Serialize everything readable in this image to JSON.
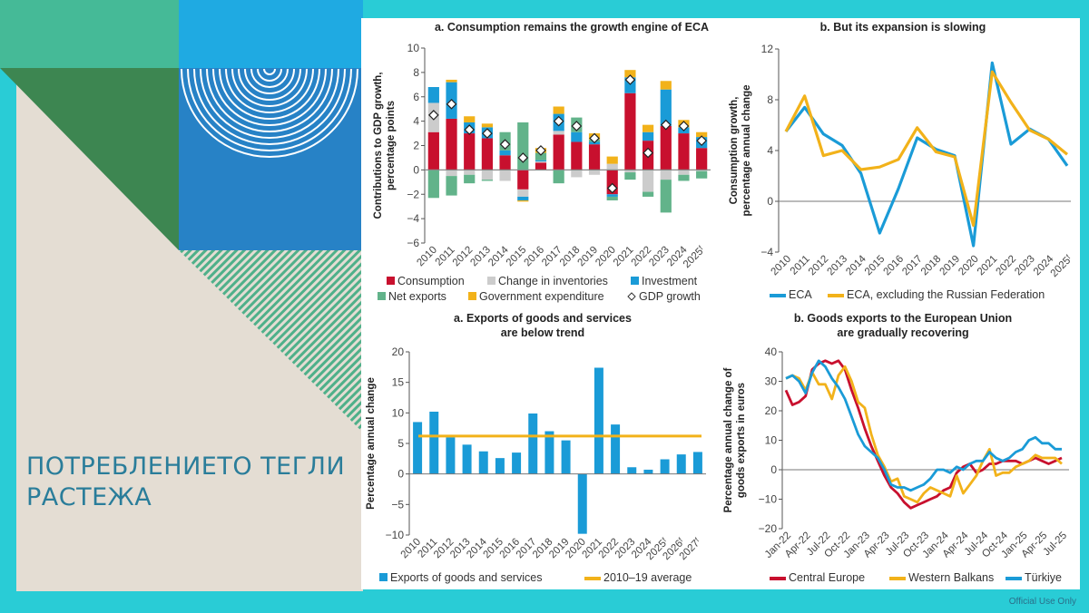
{
  "slide": {
    "title_line1": "ПОТРЕБЛЕНИЕТО ТЕГЛИ",
    "title_line2": "РАСТЕЖА",
    "footer": "Official Use Only",
    "colors": {
      "frame": "#29ccd6",
      "title": "#2a7d9a"
    }
  },
  "chart_data": [
    {
      "id": "chart-a-top",
      "type": "bar",
      "stacked": true,
      "title": "a. Consumption remains the growth engine of ECA",
      "ylabel": "Contributions to GDP growth, percentage points",
      "xlabel": "",
      "ylim": [
        -6,
        10
      ],
      "yticks": [
        -6,
        -4,
        -2,
        0,
        2,
        4,
        6,
        8,
        10
      ],
      "categories": [
        "2010",
        "2011",
        "2012",
        "2013",
        "2014",
        "2015",
        "2016",
        "2017",
        "2018",
        "2019",
        "2020",
        "2021",
        "2022",
        "2023",
        "2024",
        "2025f"
      ],
      "series": [
        {
          "name": "Consumption",
          "color": "#c8102e",
          "values": [
            3.1,
            4.2,
            3.0,
            2.6,
            1.2,
            -1.6,
            0.6,
            2.9,
            2.3,
            2.1,
            -2.0,
            6.3,
            2.4,
            3.6,
            3.0,
            1.8
          ]
        },
        {
          "name": "Change in inventories",
          "color": "#cccccc",
          "values": [
            2.4,
            -0.5,
            -0.4,
            -0.8,
            -0.9,
            -0.6,
            0.1,
            0.3,
            -0.6,
            -0.4,
            0.5,
            -0.2,
            -1.8,
            -0.8,
            -0.4,
            -0.1
          ]
        },
        {
          "name": "Investment",
          "color": "#1a9bd7",
          "values": [
            1.3,
            3.0,
            0.9,
            0.9,
            0.4,
            -0.3,
            0.1,
            1.4,
            0.8,
            0.2,
            -0.2,
            1.3,
            0.7,
            3.0,
            0.5,
            0.9
          ]
        },
        {
          "name": "Net exports",
          "color": "#62b38a",
          "values": [
            -2.3,
            -1.6,
            -0.7,
            -0.1,
            1.5,
            3.9,
            0.6,
            -1.1,
            1.2,
            0.2,
            -0.3,
            -0.6,
            -0.4,
            -2.7,
            -0.5,
            -0.6
          ]
        },
        {
          "name": "Government expenditure",
          "color": "#f2b21a",
          "values": [
            0.0,
            0.2,
            0.5,
            0.3,
            0.0,
            -0.1,
            0.4,
            0.6,
            0.0,
            0.5,
            0.6,
            0.6,
            0.6,
            0.7,
            0.6,
            0.4
          ]
        }
      ],
      "markers": {
        "name": "GDP growth",
        "values": [
          4.5,
          5.4,
          3.3,
          3.0,
          2.1,
          1.0,
          1.6,
          4.0,
          3.6,
          2.6,
          -1.5,
          7.4,
          1.4,
          3.7,
          3.6,
          2.4
        ]
      },
      "legend": {
        "placement": "bottom",
        "items": [
          "Consumption",
          "Change in inventories",
          "Investment",
          "Net exports",
          "Government expenditure",
          "GDP growth"
        ]
      },
      "grid": false
    },
    {
      "id": "chart-b-top",
      "type": "line",
      "title": "b. But its expansion is slowing",
      "ylabel": "Consumption growth, percentage annual change",
      "ylim": [
        -4,
        12
      ],
      "yticks": [
        -4,
        0,
        4,
        8,
        12
      ],
      "categories": [
        "2010",
        "2011",
        "2012",
        "2013",
        "2014",
        "2015",
        "2016",
        "2017",
        "2018",
        "2019",
        "2020",
        "2021",
        "2022",
        "2023",
        "2024",
        "2025f"
      ],
      "series": [
        {
          "name": "ECA",
          "color": "#1a9bd7",
          "values": [
            5.5,
            7.4,
            5.3,
            4.4,
            2.2,
            -2.5,
            1.0,
            5.0,
            4.1,
            3.6,
            -3.5,
            10.9,
            4.5,
            5.7,
            4.9,
            2.8
          ]
        },
        {
          "name": "ECA, excluding the Russian Federation",
          "color": "#f2b21a",
          "values": [
            5.5,
            8.3,
            3.6,
            4.0,
            2.5,
            2.7,
            3.3,
            5.8,
            3.9,
            3.5,
            -1.9,
            10.2,
            7.8,
            5.6,
            4.9,
            3.7
          ]
        }
      ],
      "legend": {
        "placement": "bottom"
      },
      "grid": false
    },
    {
      "id": "chart-a-bottom",
      "type": "bar",
      "title": "a. Exports of goods and services are below trend",
      "title_line1": "a. Exports of goods and services",
      "title_line2": "are below trend",
      "ylabel": "Percentage annual change",
      "ylim": [
        -10,
        20
      ],
      "yticks": [
        -10,
        -5,
        0,
        5,
        10,
        15,
        20
      ],
      "categories": [
        "2010",
        "2011",
        "2012",
        "2013",
        "2014",
        "2015",
        "2016",
        "2017",
        "2018",
        "2019",
        "2020",
        "2021",
        "2022",
        "2023",
        "2024",
        "2025f",
        "2026f",
        "2027f"
      ],
      "series": [
        {
          "name": "Exports of goods and services",
          "color": "#1a9bd7",
          "values": [
            8.5,
            10.2,
            6.0,
            4.8,
            3.7,
            2.6,
            3.5,
            9.9,
            7.0,
            5.5,
            -9.8,
            17.4,
            8.1,
            1.1,
            0.7,
            2.4,
            3.2,
            3.6
          ]
        }
      ],
      "reference_line": {
        "name": "2010–19 average",
        "color": "#f2b21a",
        "value": 6.2
      },
      "legend": {
        "placement": "bottom",
        "items": [
          "Exports of goods and services",
          "2010–19 average"
        ]
      },
      "grid": false
    },
    {
      "id": "chart-b-bottom",
      "type": "line",
      "title": "b. Goods exports to the European Union are gradually recovering",
      "title_line1": "b. Goods exports to the European Union",
      "title_line2": "are gradually recovering",
      "ylabel": "Percentage annual change of goods exports in euros",
      "ylim": [
        -20,
        40
      ],
      "yticks": [
        -20,
        -10,
        0,
        10,
        20,
        30,
        40
      ],
      "tick_labels": [
        "Jan-22",
        "Apr-22",
        "Jul-22",
        "Oct-22",
        "Jan-23",
        "Apr-23",
        "Jul-23",
        "Oct-23",
        "Jan-24",
        "Apr-24",
        "Jul-24",
        "Oct-24",
        "Jan-25",
        "Apr-25",
        "Jul-25"
      ],
      "x_months": 43,
      "series": [
        {
          "name": "Central Europe",
          "color": "#c8102e",
          "values": [
            27,
            22,
            23,
            25,
            34,
            36,
            37,
            36,
            37,
            34,
            27,
            21,
            14,
            8,
            3,
            -2,
            -6,
            -8,
            -11,
            -13,
            -12,
            -11,
            -10,
            -9,
            -7,
            -6,
            -1,
            1,
            2,
            -1,
            0,
            2,
            2,
            3,
            3,
            3,
            2,
            3,
            4,
            3,
            2,
            3,
            4
          ]
        },
        {
          "name": "Western Balkans",
          "color": "#f2b21a",
          "values": [
            31,
            32,
            31,
            27,
            33,
            29,
            29,
            24,
            32,
            35,
            30,
            23,
            21,
            12,
            5,
            1,
            -4,
            -3,
            -9,
            -10,
            -11,
            -8,
            -6,
            -7,
            -8,
            -9,
            -2,
            -8,
            -5,
            -2,
            3,
            7,
            -2,
            -1,
            -1,
            1,
            2,
            3,
            5,
            4,
            4,
            4,
            2
          ]
        },
        {
          "name": "Türkiye",
          "color": "#1a9bd7",
          "values": [
            31,
            32,
            30,
            26,
            33,
            37,
            35,
            31,
            28,
            24,
            18,
            12,
            8,
            6,
            4,
            0,
            -5,
            -6,
            -6,
            -7,
            -6,
            -5,
            -3,
            0,
            0,
            -1,
            1,
            0,
            2,
            3,
            3,
            6,
            4,
            3,
            4,
            6,
            7,
            10,
            11,
            9,
            9,
            7,
            7
          ]
        }
      ],
      "legend": {
        "placement": "bottom"
      },
      "grid": false
    }
  ]
}
